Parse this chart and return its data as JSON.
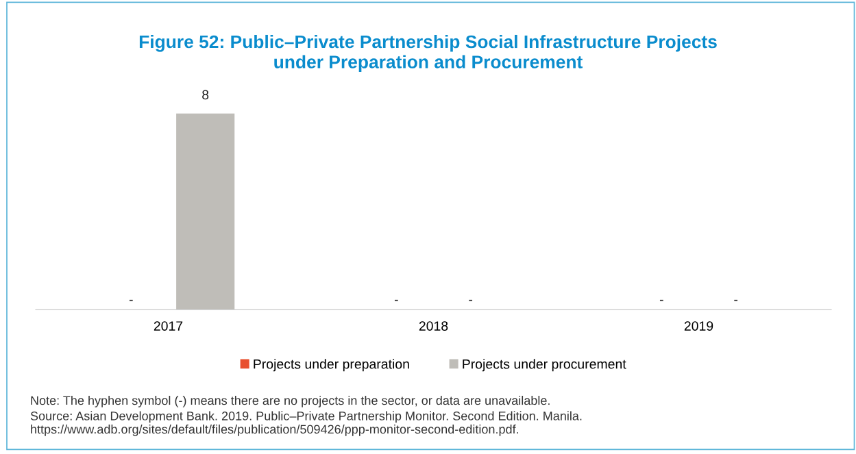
{
  "chart_data": {
    "type": "bar",
    "title": "Figure 52: Public–Private Partnership Social Infrastructure Projects\nunder Preparation and Procurement",
    "categories": [
      "2017",
      "2018",
      "2019"
    ],
    "series": [
      {
        "name": "Projects under preparation",
        "color": "#e8502f",
        "values": [
          null,
          null,
          null
        ],
        "value_labels": [
          "-",
          "-",
          "-"
        ]
      },
      {
        "name": "Projects under procurement",
        "color": "#bfbdb8",
        "values": [
          8,
          null,
          null
        ],
        "value_labels": [
          "8",
          "-",
          "-"
        ]
      }
    ],
    "legend": "bottom",
    "grid": false,
    "annotations": [
      "Note: The hyphen symbol (-) means there are no projects in the sector, or data are unavailable.",
      "Source: Asian Development Bank. 2019. Public–Private Partnership Monitor. Second Edition. Manila. https://www.adb.org/sites/default/files/publication/509426/ppp-monitor-second-edition.pdf."
    ]
  }
}
